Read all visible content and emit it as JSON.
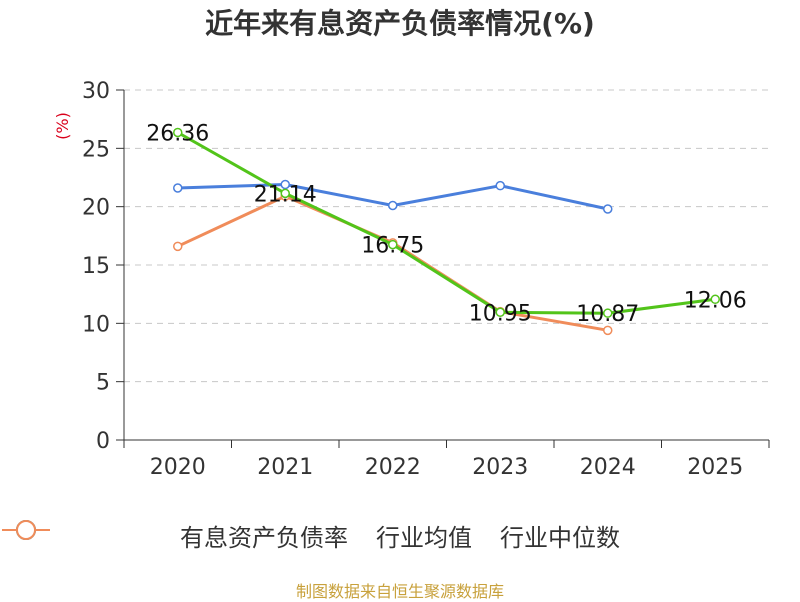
{
  "title": "近年来有息资产负债率情况(%)",
  "y_unit": "(%)",
  "source": "制图数据来自恒生聚源数据库",
  "chart_data": {
    "type": "line",
    "title": "近年来有息资产负债率情况(%)",
    "ylabel": "(%)",
    "categories": [
      "2020",
      "2021",
      "2022",
      "2023",
      "2024",
      "2025"
    ],
    "ylim": [
      0,
      30
    ],
    "yticks": [
      0,
      5,
      10,
      15,
      20,
      25,
      30
    ],
    "grid": true,
    "legend_position": "bottom",
    "series": [
      {
        "name": "有息资产负债率",
        "color": "#52c41a",
        "values": [
          26.36,
          21.14,
          16.75,
          10.95,
          10.87,
          12.06
        ],
        "labels": [
          "26.36",
          "21.14",
          "16.75",
          "10.95",
          "10.87",
          "12.06"
        ]
      },
      {
        "name": "行业均值",
        "color": "#4a7fdc",
        "values": [
          21.6,
          21.9,
          20.1,
          21.8,
          19.8,
          null
        ]
      },
      {
        "name": "行业中位数",
        "color": "#f08c5a",
        "values": [
          16.6,
          20.9,
          16.9,
          11.0,
          9.4,
          null
        ]
      }
    ]
  }
}
